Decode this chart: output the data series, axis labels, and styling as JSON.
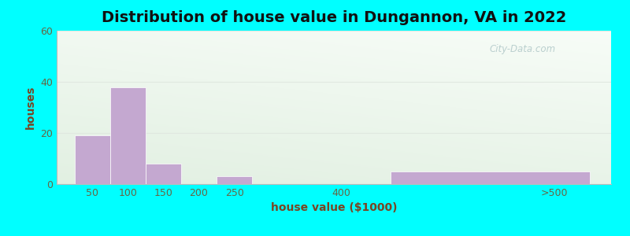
{
  "title": "Distribution of house value in Dungannon, VA in 2022",
  "xlabel": "house value ($1000)",
  "ylabel": "houses",
  "bar_values": [
    19,
    38,
    8,
    0,
    3,
    0,
    5
  ],
  "bar_color": "#c4a8d0",
  "ylim": [
    0,
    60
  ],
  "yticks": [
    0,
    20,
    40,
    60
  ],
  "figure_bg": "#00ffff",
  "title_fontsize": 14,
  "axis_label_fontsize": 10,
  "watermark_text": "City-Data.com",
  "tick_labels": [
    "50",
    "100",
    "150",
    "200",
    "250",
    "400",
    ">500"
  ],
  "bg_top_color": "#f5fff5",
  "bg_bottom_left_color": "#d8f0d8",
  "grid_color": "#e0e8e0"
}
